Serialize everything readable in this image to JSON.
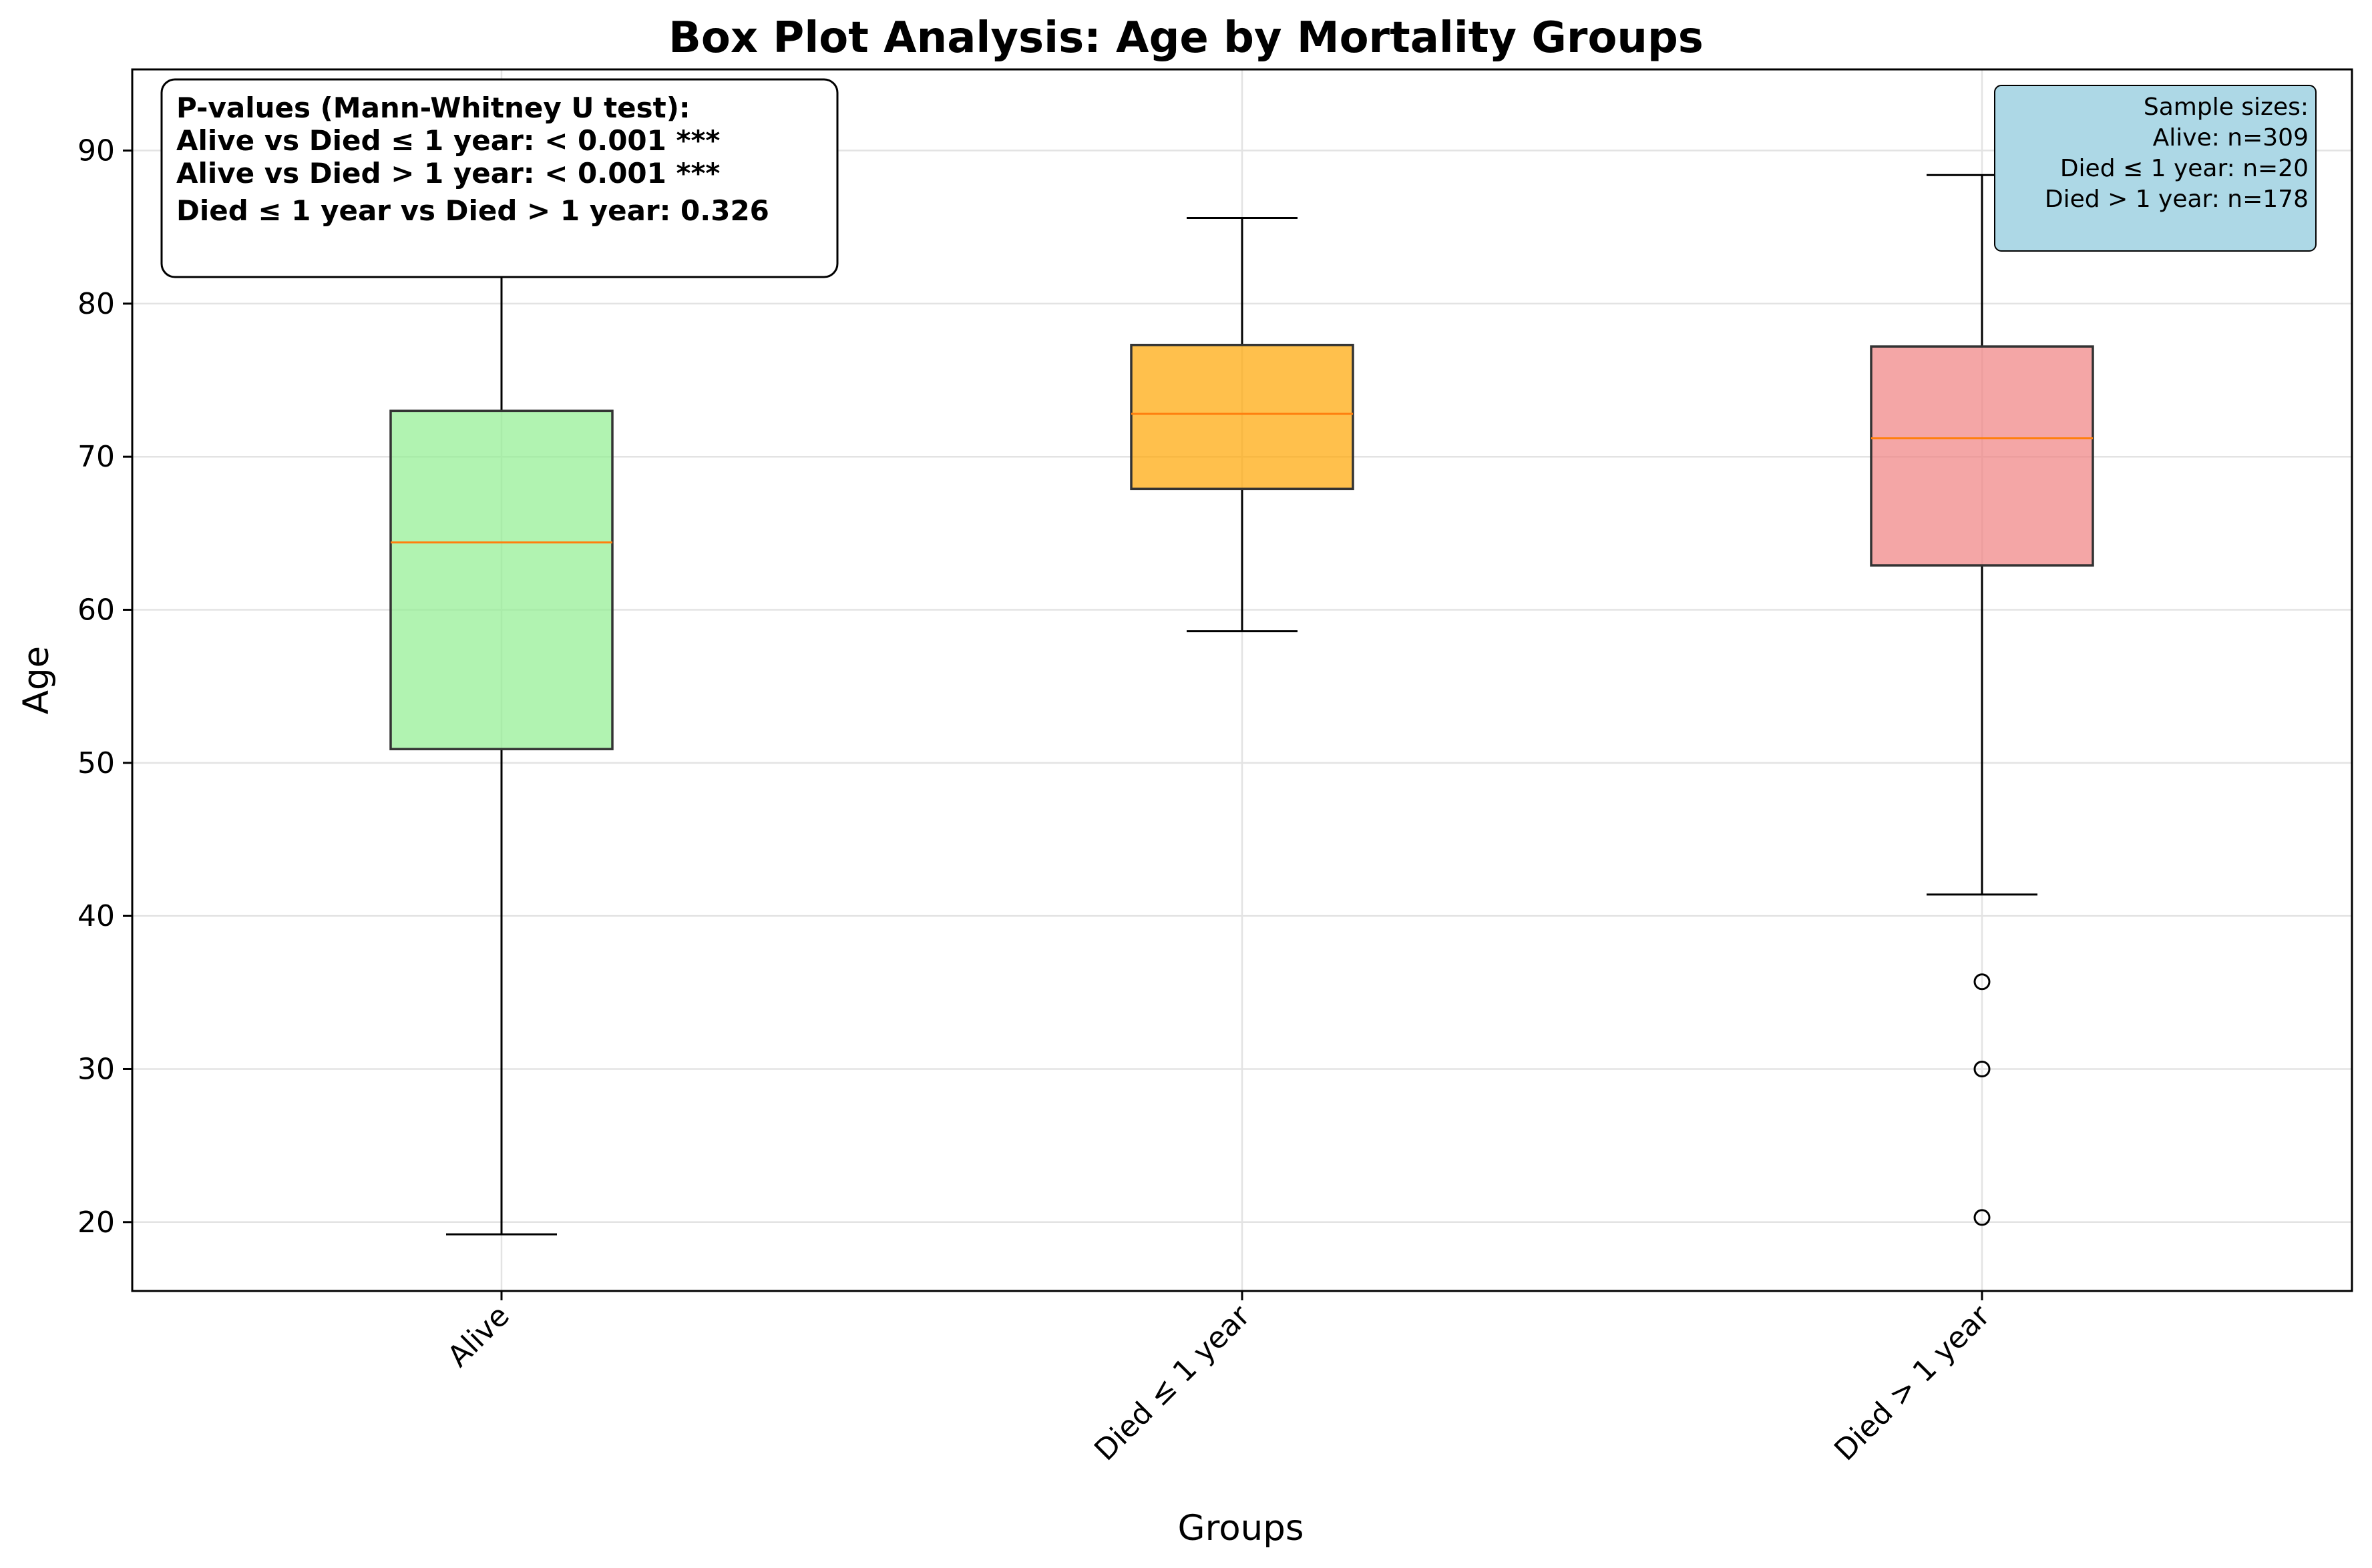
{
  "chart_data": {
    "type": "box",
    "title": "Box Plot Analysis: Age by Mortality Groups",
    "xlabel": "Groups",
    "ylabel": "Age",
    "ylim": [
      15.5,
      95.3
    ],
    "yticks": [
      20,
      30,
      40,
      50,
      60,
      70,
      80,
      90
    ],
    "grid": true,
    "categories": [
      "Alive",
      "Died ≤ 1 year",
      "Died > 1 year"
    ],
    "boxes": [
      {
        "name": "Alive",
        "whisker_low": 19.2,
        "q1": 50.9,
        "median": 64.4,
        "q3": 73.0,
        "whisker_high": 82.0,
        "outliers": [],
        "color": "#90ee90"
      },
      {
        "name": "Died ≤ 1 year",
        "whisker_low": 58.6,
        "q1": 67.9,
        "median": 72.8,
        "q3": 77.3,
        "whisker_high": 85.6,
        "outliers": [],
        "color": "#ffa500"
      },
      {
        "name": "Died > 1 year",
        "whisker_low": 41.4,
        "q1": 62.9,
        "median": 71.2,
        "q3": 77.2,
        "whisker_high": 88.4,
        "outliers": [
          35.7,
          30.0,
          20.3
        ],
        "color": "#f08080"
      }
    ],
    "median_color": "#ff7f0e",
    "annotations": {
      "pvalues": {
        "lines": [
          "P-values (Mann-Whitney U test):",
          "Alive vs Died ≤ 1 year: < 0.001 ***",
          "Alive vs Died > 1 year: < 0.001 ***",
          "Died ≤ 1 year vs Died > 1 year: 0.326"
        ]
      },
      "sample_sizes": {
        "lines": [
          "Sample sizes:",
          "Alive: n=309",
          "Died ≤ 1 year: n=20",
          "Died > 1 year: n=178"
        ],
        "color": "#add8e6"
      }
    }
  }
}
